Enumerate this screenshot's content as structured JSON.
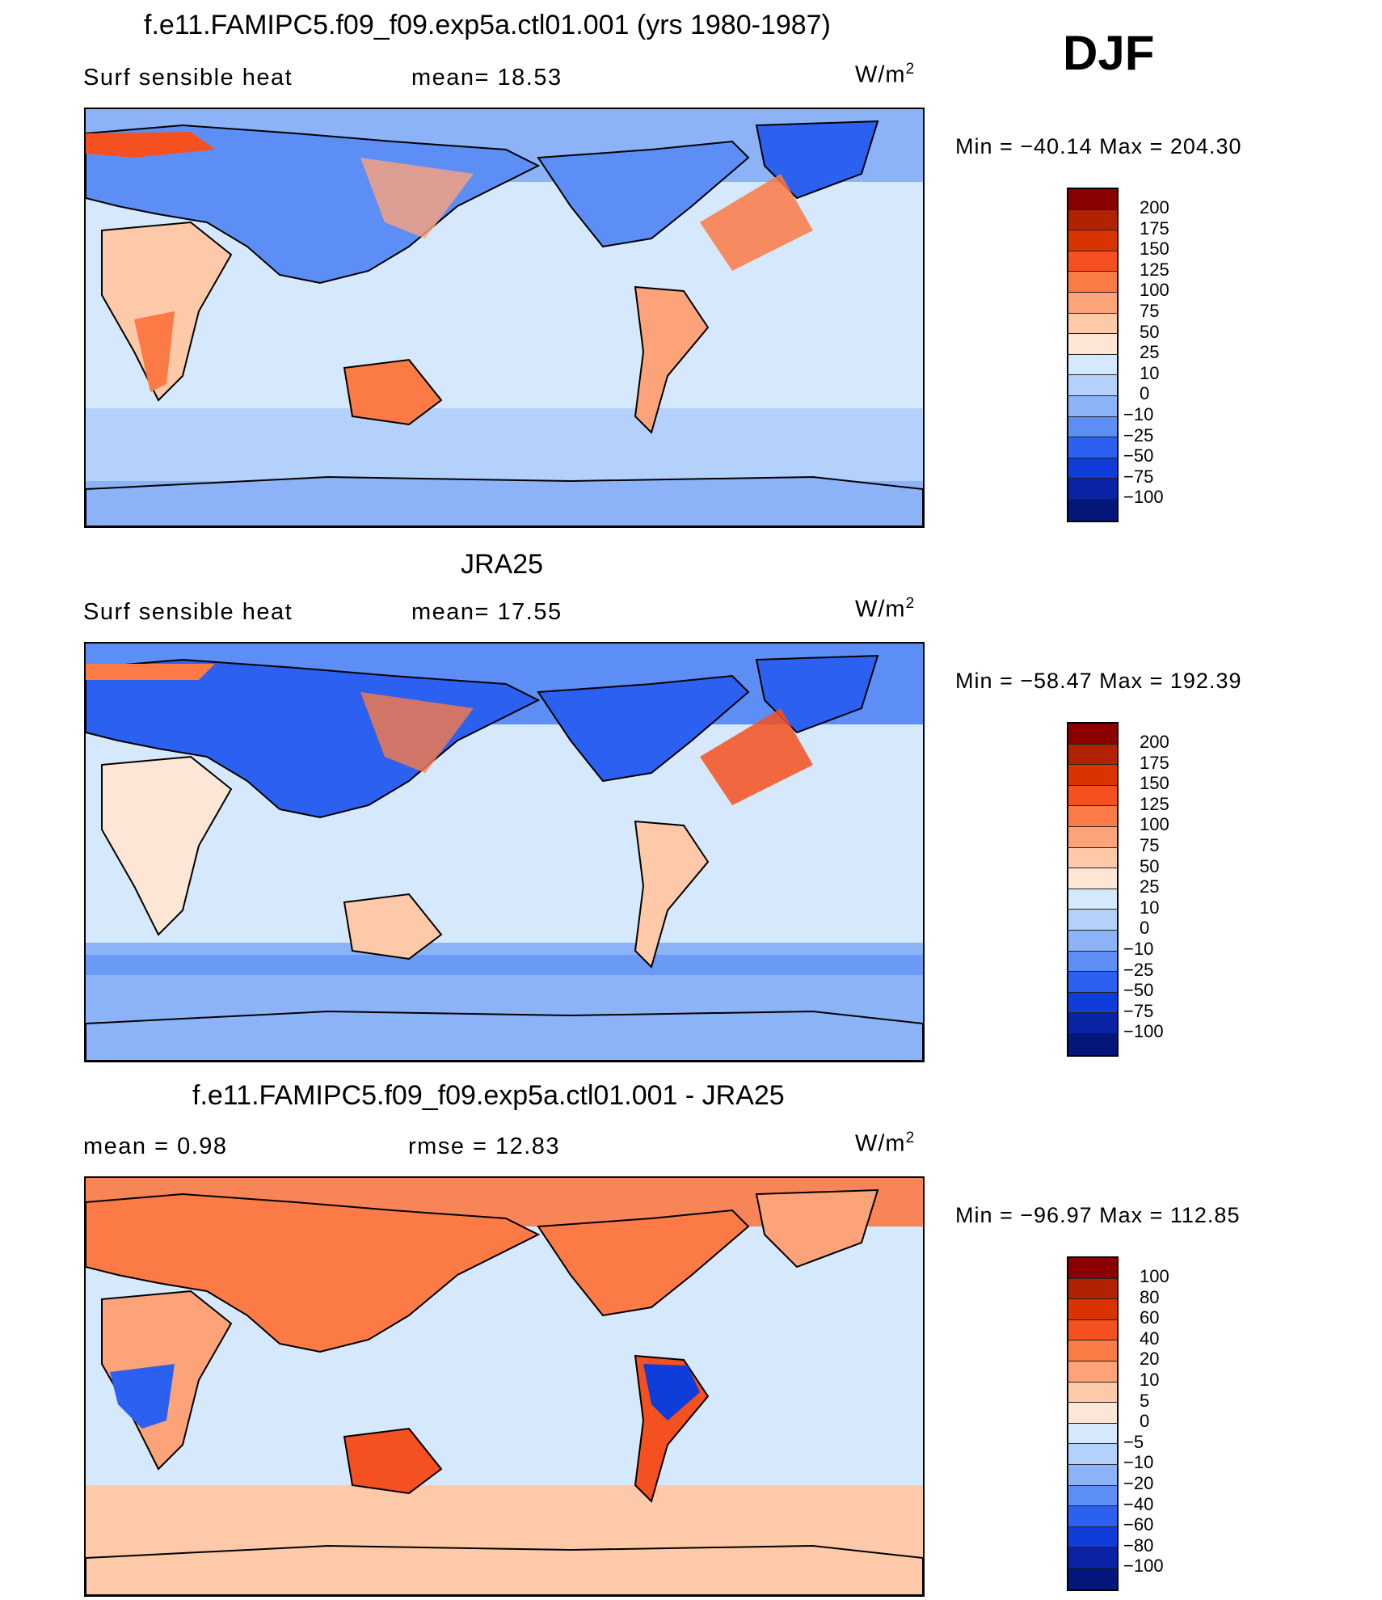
{
  "season": "DJF",
  "panels": [
    {
      "title": "f.e11.FAMIPC5.f09_f09.exp5a.ctl01.001 (yrs 1980-1987)",
      "left_label": "Surf  sensible  heat",
      "right_label": "mean=   18.53",
      "units": "W/m",
      "units_exp": "2",
      "minmax": "Min  =  −40.14  Max  =  204.30",
      "colorbar": {
        "labels": [
          "200",
          "175",
          "150",
          "125",
          "100",
          "75",
          "50",
          "25",
          "10",
          "0",
          "−10",
          "−25",
          "−50",
          "−75",
          "−100"
        ],
        "colors": [
          "#8b0000",
          "#b22200",
          "#d93300",
          "#f5501f",
          "#fb7a46",
          "#fca37a",
          "#fdc9a8",
          "#fde6d6",
          "#d6e8fb",
          "#b3d1fb",
          "#8cb3f7",
          "#5c8ef5",
          "#2b60f0",
          "#0f3dd9",
          "#0a23a6",
          "#05167a"
        ]
      },
      "bg": "#d6e8fb"
    },
    {
      "title": "JRA25",
      "left_label": "Surf  sensible  heat",
      "right_label": "mean=   17.55",
      "units": "W/m",
      "units_exp": "2",
      "minmax": "Min  =  −58.47  Max  =  192.39",
      "colorbar": {
        "labels": [
          "200",
          "175",
          "150",
          "125",
          "100",
          "75",
          "50",
          "25",
          "10",
          "0",
          "−10",
          "−25",
          "−50",
          "−75",
          "−100"
        ],
        "colors": [
          "#8b0000",
          "#b22200",
          "#d93300",
          "#f5501f",
          "#fb7a46",
          "#fca37a",
          "#fdc9a8",
          "#fde6d6",
          "#d6e8fb",
          "#b3d1fb",
          "#8cb3f7",
          "#5c8ef5",
          "#2b60f0",
          "#0f3dd9",
          "#0a23a6",
          "#05167a"
        ]
      },
      "bg": "#d6e8fb"
    },
    {
      "title": "f.e11.FAMIPC5.f09_f09.exp5a.ctl01.001 - JRA25",
      "left_label": "mean  =     0.98",
      "right_label": "rmse  =    12.83",
      "units": "W/m",
      "units_exp": "2",
      "minmax": "Min  =  −96.97  Max  =  112.85",
      "colorbar": {
        "labels": [
          "100",
          "80",
          "60",
          "40",
          "20",
          "10",
          "5",
          "0",
          "−5",
          "−10",
          "−20",
          "−40",
          "−60",
          "−80",
          "−100"
        ],
        "colors": [
          "#8b0000",
          "#b22200",
          "#d93300",
          "#f5501f",
          "#fb7a46",
          "#fca37a",
          "#fdc9a8",
          "#fde6d6",
          "#d6e8fb",
          "#b3d1fb",
          "#8cb3f7",
          "#5c8ef5",
          "#2b60f0",
          "#0f3dd9",
          "#0a23a6",
          "#05167a"
        ]
      },
      "bg": "#d6e8fb"
    }
  ]
}
